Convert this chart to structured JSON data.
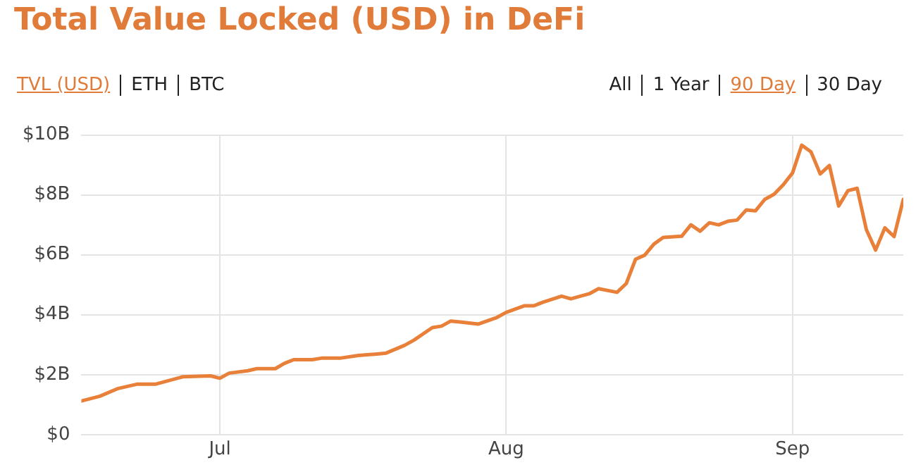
{
  "chart_data": {
    "type": "line",
    "title": "Total Value Locked (USD) in DeFi",
    "annotations": [
      "TVL (USD)",
      "ETH",
      "BTC",
      "All",
      "1 Year",
      "90 Day",
      "30 Day"
    ],
    "x": [
      "--06-16",
      "--06-18",
      "--06-20",
      "--06-22",
      "--06-24",
      "--06-27",
      "--06-30",
      "--07-01",
      "--07-02",
      "--07-04",
      "--07-05",
      "--07-07",
      "--07-08",
      "--07-09",
      "--07-11",
      "--07-12",
      "--07-14",
      "--07-16",
      "--07-18",
      "--07-19",
      "--07-21",
      "--07-22",
      "--07-24",
      "--07-25",
      "--07-26",
      "--07-27",
      "--07-29",
      "--07-31",
      "--08-01",
      "--08-03",
      "--08-04",
      "--08-05",
      "--08-07",
      "--08-08",
      "--08-10",
      "--08-11",
      "--08-13",
      "--08-14",
      "--08-15",
      "--08-16",
      "--08-17",
      "--08-18",
      "--08-20",
      "--08-21",
      "--08-22",
      "--08-23",
      "--08-24",
      "--08-25",
      "--08-26",
      "--08-27",
      "--08-28",
      "--08-29",
      "--08-30",
      "--08-31",
      "--09-01",
      "--09-02",
      "--09-03",
      "--09-04",
      "--09-05",
      "--09-06",
      "--09-07",
      "--09-08",
      "--09-09",
      "--09-10",
      "--09-11",
      "--09-12",
      "--09-13"
    ],
    "series": [
      {
        "color": "#e8803a",
        "values": [
          1.12,
          1.28,
          1.54,
          1.68,
          1.68,
          1.93,
          1.96,
          1.88,
          2.05,
          2.13,
          2.2,
          2.2,
          2.38,
          2.5,
          2.5,
          2.55,
          2.55,
          2.64,
          2.69,
          2.72,
          2.98,
          3.15,
          3.57,
          3.62,
          3.79,
          3.76,
          3.69,
          3.91,
          4.08,
          4.3,
          4.3,
          4.42,
          4.62,
          4.53,
          4.7,
          4.87,
          4.75,
          5.04,
          5.85,
          5.99,
          6.36,
          6.58,
          6.62,
          7.0,
          6.79,
          7.07,
          7.0,
          7.12,
          7.16,
          7.5,
          7.47,
          7.85,
          8.02,
          8.34,
          8.73,
          9.66,
          9.44,
          8.7,
          8.98,
          7.63,
          8.14,
          8.22,
          6.84,
          6.16,
          6.9,
          6.61,
          7.85
        ]
      }
    ],
    "xlim": [
      "--06-16",
      "--09-13"
    ],
    "xticks": [
      {
        "value": "--07-01",
        "label": "Jul"
      },
      {
        "value": "--08-01",
        "label": "Aug"
      },
      {
        "value": "--09-01",
        "label": "Sep"
      }
    ],
    "ylim": [
      0,
      10
    ],
    "yticks": [
      {
        "value": 0,
        "label": "$0"
      },
      {
        "value": 2,
        "label": "$2B"
      },
      {
        "value": 4,
        "label": "$4B"
      },
      {
        "value": 6,
        "label": "$6B"
      },
      {
        "value": 8,
        "label": "$8B"
      },
      {
        "value": 10,
        "label": "$10B"
      }
    ],
    "grid": true,
    "legend": false,
    "marker": "none",
    "line_style": "solid"
  }
}
